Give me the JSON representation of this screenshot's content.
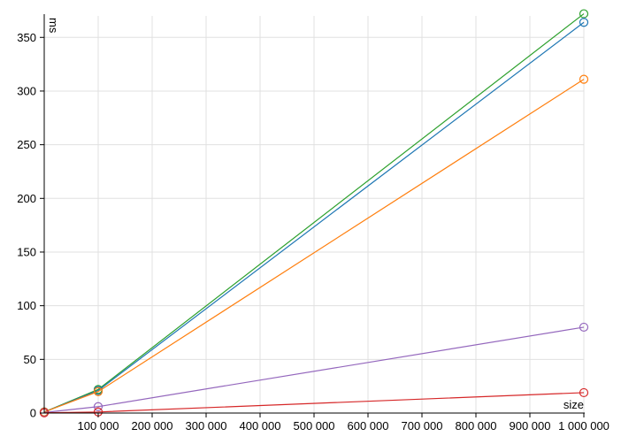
{
  "chart_data": {
    "type": "line",
    "xlabel": "size",
    "ylabel": "ms",
    "xlim": [
      0,
      1000000
    ],
    "ylim": [
      0,
      370
    ],
    "grid": true,
    "x_ticks": [
      {
        "value": 100000,
        "label": "100 000"
      },
      {
        "value": 200000,
        "label": "200 000"
      },
      {
        "value": 300000,
        "label": "300 000"
      },
      {
        "value": 400000,
        "label": "400 000"
      },
      {
        "value": 500000,
        "label": "500 000"
      },
      {
        "value": 600000,
        "label": "600 000"
      },
      {
        "value": 700000,
        "label": "700 000"
      },
      {
        "value": 800000,
        "label": "800 000"
      },
      {
        "value": 900000,
        "label": "900 000"
      },
      {
        "value": 1000000,
        "label": "1 000 000"
      }
    ],
    "y_ticks": [
      {
        "value": 0,
        "label": "0"
      },
      {
        "value": 50,
        "label": "50"
      },
      {
        "value": 100,
        "label": "100"
      },
      {
        "value": 150,
        "label": "150"
      },
      {
        "value": 200,
        "label": "200"
      },
      {
        "value": 250,
        "label": "250"
      },
      {
        "value": 300,
        "label": "300"
      },
      {
        "value": 350,
        "label": "350"
      }
    ],
    "x": [
      0,
      100000,
      1000000
    ],
    "series": [
      {
        "color": "#2ca02c",
        "values": [
          1,
          22,
          372
        ]
      },
      {
        "color": "#1f77b4",
        "values": [
          1,
          21,
          364
        ]
      },
      {
        "color": "#ff7f0e",
        "values": [
          1,
          20,
          311
        ]
      },
      {
        "color": "#9467bd",
        "values": [
          0.5,
          6,
          80
        ]
      },
      {
        "color": "#d62728",
        "values": [
          0.2,
          1,
          19
        ]
      }
    ]
  }
}
